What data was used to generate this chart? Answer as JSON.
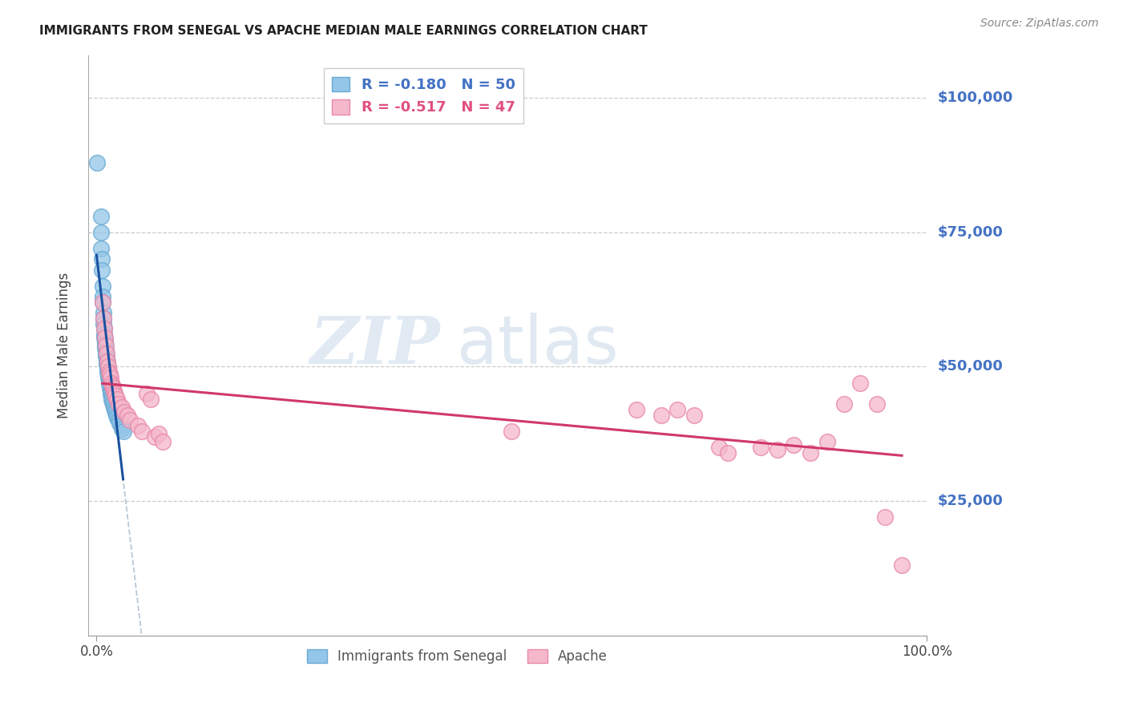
{
  "title": "IMMIGRANTS FROM SENEGAL VS APACHE MEDIAN MALE EARNINGS CORRELATION CHART",
  "source": "Source: ZipAtlas.com",
  "ylabel": "Median Male Earnings",
  "blue_color": "#93c6e8",
  "blue_edge_color": "#6aaad4",
  "pink_color": "#f5b8cb",
  "pink_edge_color": "#e888a8",
  "blue_line_color": "#1a52a0",
  "pink_line_color": "#d03868",
  "gray_dash_color": "#b8c8d8",
  "watermark_zip_color": "#c8d8e8",
  "watermark_atlas_color": "#c0d0e0",
  "blue_r": -0.18,
  "blue_n": 50,
  "pink_r": -0.517,
  "pink_n": 47,
  "blue_points": [
    [
      0.001,
      88000
    ],
    [
      0.005,
      78000
    ],
    [
      0.005,
      75000
    ],
    [
      0.005,
      72000
    ],
    [
      0.006,
      70000
    ],
    [
      0.006,
      68000
    ],
    [
      0.007,
      65000
    ],
    [
      0.007,
      63000
    ],
    [
      0.007,
      62000
    ],
    [
      0.008,
      60000
    ],
    [
      0.008,
      59000
    ],
    [
      0.008,
      58000
    ],
    [
      0.009,
      57000
    ],
    [
      0.009,
      56000
    ],
    [
      0.009,
      55500
    ],
    [
      0.01,
      55000
    ],
    [
      0.01,
      54500
    ],
    [
      0.01,
      54000
    ],
    [
      0.01,
      53500
    ],
    [
      0.011,
      53000
    ],
    [
      0.011,
      52500
    ],
    [
      0.011,
      52000
    ],
    [
      0.012,
      51500
    ],
    [
      0.012,
      51000
    ],
    [
      0.012,
      50500
    ],
    [
      0.013,
      50000
    ],
    [
      0.013,
      49500
    ],
    [
      0.013,
      49000
    ],
    [
      0.014,
      48500
    ],
    [
      0.014,
      48000
    ],
    [
      0.015,
      47500
    ],
    [
      0.015,
      47000
    ],
    [
      0.016,
      46500
    ],
    [
      0.016,
      46000
    ],
    [
      0.017,
      45500
    ],
    [
      0.017,
      45000
    ],
    [
      0.018,
      44500
    ],
    [
      0.018,
      44000
    ],
    [
      0.019,
      43500
    ],
    [
      0.02,
      43000
    ],
    [
      0.021,
      42500
    ],
    [
      0.022,
      42000
    ],
    [
      0.023,
      41500
    ],
    [
      0.024,
      41000
    ],
    [
      0.025,
      40500
    ],
    [
      0.027,
      40000
    ],
    [
      0.028,
      39500
    ],
    [
      0.03,
      39000
    ],
    [
      0.03,
      38500
    ],
    [
      0.032,
      38000
    ]
  ],
  "pink_points": [
    [
      0.007,
      62000
    ],
    [
      0.008,
      59000
    ],
    [
      0.009,
      57000
    ],
    [
      0.01,
      55500
    ],
    [
      0.011,
      54000
    ],
    [
      0.012,
      52500
    ],
    [
      0.013,
      51000
    ],
    [
      0.014,
      50000
    ],
    [
      0.015,
      49000
    ],
    [
      0.016,
      48500
    ],
    [
      0.017,
      48000
    ],
    [
      0.018,
      47000
    ],
    [
      0.019,
      46500
    ],
    [
      0.02,
      46000
    ],
    [
      0.021,
      45500
    ],
    [
      0.022,
      45000
    ],
    [
      0.023,
      44500
    ],
    [
      0.025,
      44000
    ],
    [
      0.027,
      43000
    ],
    [
      0.03,
      42500
    ],
    [
      0.033,
      41500
    ],
    [
      0.037,
      41000
    ],
    [
      0.04,
      40000
    ],
    [
      0.05,
      39000
    ],
    [
      0.055,
      38000
    ],
    [
      0.06,
      45000
    ],
    [
      0.065,
      44000
    ],
    [
      0.07,
      37000
    ],
    [
      0.075,
      37500
    ],
    [
      0.08,
      36000
    ],
    [
      0.5,
      38000
    ],
    [
      0.65,
      42000
    ],
    [
      0.68,
      41000
    ],
    [
      0.7,
      42000
    ],
    [
      0.72,
      41000
    ],
    [
      0.75,
      35000
    ],
    [
      0.76,
      34000
    ],
    [
      0.8,
      35000
    ],
    [
      0.82,
      34500
    ],
    [
      0.84,
      35500
    ],
    [
      0.86,
      34000
    ],
    [
      0.88,
      36000
    ],
    [
      0.9,
      43000
    ],
    [
      0.92,
      47000
    ],
    [
      0.94,
      43000
    ],
    [
      0.95,
      22000
    ],
    [
      0.97,
      13000
    ]
  ],
  "xlim": [
    -0.01,
    1.0
  ],
  "ylim": [
    0,
    108000
  ],
  "xticks": [
    0,
    1.0
  ],
  "xticklabels": [
    "0.0%",
    "100.0%"
  ],
  "ytick_vals": [
    25000,
    50000,
    75000,
    100000
  ],
  "ytick_labels": [
    "$25,000",
    "$50,000",
    "$75,000",
    "$100,000"
  ]
}
